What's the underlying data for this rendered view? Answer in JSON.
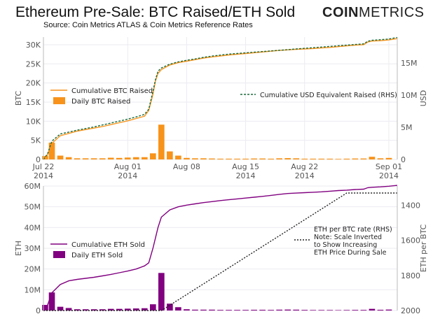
{
  "header": {
    "title": "Ethereum Pre-Sale: BTC Raised/ETH Sold",
    "brand_bold": "COIN",
    "brand_light": "METRICS",
    "source": "Source: Coin Metrics ATLAS & Coin Metrics Reference Rates"
  },
  "colors": {
    "btc_orange": "#f7931a",
    "usd_green": "#1a6b3a",
    "eth_purple": "#800080",
    "grid": "#ebebf2",
    "axis_text": "#555555"
  },
  "chart_data": [
    {
      "type": "bar",
      "ylabel": "BTC",
      "y2label": "USD",
      "ylim": [
        0,
        32000
      ],
      "y2lim": [
        0,
        19000000
      ],
      "grid": true,
      "yticks": [
        0,
        5000,
        10000,
        15000,
        20000,
        25000,
        30000
      ],
      "ytick_labels": [
        "0",
        "5K",
        "10K",
        "15K",
        "20K",
        "25K",
        "30K"
      ],
      "y2ticks": [
        0,
        5000000,
        10000000,
        15000000
      ],
      "y2tick_labels": [
        "0",
        "5M",
        "10M",
        "15M"
      ],
      "xticks": [
        {
          "day": 0,
          "line1": "Jul 22",
          "line2": "2014"
        },
        {
          "day": 10,
          "line1": "Aug 01",
          "line2": "2014"
        },
        {
          "day": 17,
          "line1": "Aug 08",
          "line2": ""
        },
        {
          "day": 24,
          "line1": "Aug 15",
          "line2": "2014"
        },
        {
          "day": 31,
          "line1": "Aug 22",
          "line2": "2014"
        },
        {
          "day": 41,
          "line1": "Sep 01",
          "line2": "2014"
        }
      ],
      "xlim": [
        0,
        42
      ],
      "legend_left": {
        "position": "center-left",
        "entries": [
          "Cumulative BTC Raised",
          "Daily BTC Raised"
        ]
      },
      "legend_right": {
        "position": "center-right",
        "entries": [
          "Cumulative USD Equivalent Raised (RHS)"
        ]
      },
      "series": [
        {
          "name": "Cumulative BTC Raised",
          "kind": "line",
          "axis": "left",
          "color": "#f7931a",
          "x": [
            0,
            0.5,
            1,
            2,
            3,
            4,
            5,
            6,
            7,
            8,
            9,
            10,
            11,
            12,
            12.5,
            13,
            13.3,
            13.6,
            14,
            15,
            16,
            17,
            18,
            19,
            20,
            21,
            22,
            23,
            24,
            25,
            26,
            27,
            28,
            29,
            30,
            31,
            32,
            33,
            34,
            35,
            36,
            37,
            38,
            38.5,
            39,
            40,
            41,
            42
          ],
          "y": [
            0,
            1200,
            4200,
            6200,
            6800,
            7400,
            7800,
            8200,
            8600,
            9100,
            9600,
            10100,
            10700,
            11300,
            12800,
            17000,
            20500,
            22500,
            23500,
            24700,
            25300,
            25700,
            26100,
            26500,
            26800,
            27050,
            27300,
            27500,
            27700,
            27900,
            28100,
            28300,
            28500,
            28650,
            28800,
            28900,
            29000,
            29150,
            29300,
            29500,
            29700,
            29900,
            30000,
            30700,
            30950,
            31050,
            31250,
            31600
          ]
        },
        {
          "name": "Cumulative USD Equivalent Raised (RHS)",
          "kind": "line",
          "axis": "right",
          "style": "dashed",
          "color": "#1a6b3a",
          "x": [
            0,
            0.5,
            1,
            2,
            3,
            4,
            5,
            6,
            7,
            8,
            9,
            10,
            11,
            12,
            12.5,
            13,
            13.3,
            13.6,
            14,
            15,
            16,
            17,
            18,
            19,
            20,
            21,
            22,
            23,
            24,
            25,
            26,
            27,
            28,
            29,
            30,
            31,
            32,
            33,
            34,
            35,
            36,
            37,
            38,
            38.5,
            39,
            40,
            41,
            42
          ],
          "y": [
            0,
            900000,
            2850000,
            3950000,
            4250000,
            4550000,
            4800000,
            5050000,
            5350000,
            5650000,
            5950000,
            6250000,
            6600000,
            7000000,
            7800000,
            10600000,
            12400000,
            13700000,
            14200000,
            14800000,
            15150000,
            15400000,
            15600000,
            15850000,
            16050000,
            16200000,
            16350000,
            16450000,
            16550000,
            16650000,
            16750000,
            16850000,
            16950000,
            17050000,
            17150000,
            17250000,
            17350000,
            17450000,
            17550000,
            17650000,
            17750000,
            17850000,
            17950000,
            18350000,
            18500000,
            18600000,
            18700000,
            18950000
          ]
        },
        {
          "name": "Daily BTC Raised",
          "kind": "bar",
          "axis": "left",
          "color": "#f7931a",
          "x": [
            0.2,
            1,
            2,
            3,
            4,
            5,
            6,
            7,
            8,
            9,
            10,
            11,
            12,
            13,
            14,
            15,
            16,
            17,
            18,
            19,
            20,
            21,
            22,
            23,
            24,
            25,
            26,
            27,
            28,
            29,
            30,
            31,
            32,
            33,
            34,
            35,
            36,
            37,
            38,
            39,
            40,
            41
          ],
          "y": [
            900,
            4400,
            1000,
            600,
            300,
            300,
            300,
            300,
            450,
            400,
            500,
            600,
            600,
            1600,
            9100,
            2100,
            1000,
            400,
            300,
            300,
            250,
            200,
            200,
            200,
            200,
            250,
            250,
            200,
            300,
            350,
            300,
            200,
            200,
            200,
            200,
            150,
            200,
            250,
            250,
            700,
            300,
            400
          ]
        }
      ]
    },
    {
      "type": "bar",
      "ylabel": "ETH",
      "y2label": "ETH per BTC",
      "ylim": [
        0,
        60000000
      ],
      "y2lim": [
        2000,
        1290
      ],
      "y2_inverted": true,
      "grid": true,
      "yticks": [
        0,
        10000000,
        20000000,
        30000000,
        40000000,
        50000000,
        60000000
      ],
      "ytick_labels": [
        "0",
        "10M",
        "20M",
        "30M",
        "40M",
        "50M",
        "60M"
      ],
      "y2ticks": [
        2000,
        1800,
        1600,
        1400
      ],
      "y2tick_labels": [
        "2000",
        "1800",
        "1600",
        "1400"
      ],
      "xlim": [
        0,
        42
      ],
      "legend_left": {
        "position": "center-left",
        "entries": [
          "Cumulative ETH Sold",
          "Daily ETH Sold"
        ]
      },
      "legend_right": {
        "position": "center-right",
        "entries": [
          "ETH per BTC rate (RHS)\nNote: Scale Inverted\nto Show Increasing\nETH Price During Sale"
        ]
      },
      "series": [
        {
          "name": "Cumulative ETH Sold",
          "kind": "line",
          "axis": "left",
          "color": "#800080",
          "x": [
            0,
            0.5,
            1,
            2,
            3,
            4,
            5,
            6,
            7,
            8,
            9,
            10,
            11,
            12,
            12.5,
            13,
            13.3,
            13.6,
            14,
            15,
            16,
            17,
            18,
            19,
            20,
            21,
            22,
            23,
            24,
            25,
            26,
            27,
            28,
            29,
            30,
            31,
            32,
            33,
            34,
            35,
            36,
            37,
            38,
            38.5,
            39,
            40,
            41,
            42
          ],
          "y": [
            0,
            2700000,
            8500000,
            12500000,
            14300000,
            15000000,
            15500000,
            16000000,
            16700000,
            17400000,
            18200000,
            19000000,
            20000000,
            21500000,
            23000000,
            30000000,
            35000000,
            40000000,
            45000000,
            48500000,
            50000000,
            50800000,
            51400000,
            52000000,
            52500000,
            53000000,
            53400000,
            53800000,
            54200000,
            54600000,
            55000000,
            55500000,
            56000000,
            56400000,
            56600000,
            56800000,
            57000000,
            57200000,
            57500000,
            57800000,
            58000000,
            58300000,
            58500000,
            59200000,
            59400000,
            59600000,
            59900000,
            60300000
          ]
        },
        {
          "name": "ETH per BTC rate (RHS)",
          "kind": "line",
          "axis": "right",
          "style": "dotted",
          "color": "#222222",
          "x": [
            0,
            14,
            14.01,
            36,
            42
          ],
          "y": [
            2000,
            2000,
            2000,
            1330,
            1330
          ]
        },
        {
          "name": "Daily ETH Sold",
          "kind": "bar",
          "axis": "left",
          "color": "#800080",
          "x": [
            0.2,
            1,
            2,
            3,
            4,
            5,
            6,
            7,
            8,
            9,
            10,
            11,
            12,
            13,
            14,
            15,
            16,
            17,
            18,
            19,
            20,
            21,
            22,
            23,
            24,
            25,
            26,
            27,
            28,
            29,
            30,
            31,
            32,
            33,
            34,
            35,
            36,
            37,
            38,
            39,
            40,
            41
          ],
          "y": [
            2700000,
            8700000,
            1800000,
            1200000,
            600000,
            600000,
            600000,
            600000,
            800000,
            800000,
            900000,
            1000000,
            1100000,
            3000000,
            18100000,
            3300000,
            1600000,
            600000,
            400000,
            400000,
            400000,
            300000,
            300000,
            300000,
            300000,
            350000,
            350000,
            300000,
            400000,
            450000,
            400000,
            300000,
            250000,
            250000,
            250000,
            200000,
            250000,
            300000,
            300000,
            800000,
            350000,
            450000
          ]
        }
      ]
    }
  ]
}
